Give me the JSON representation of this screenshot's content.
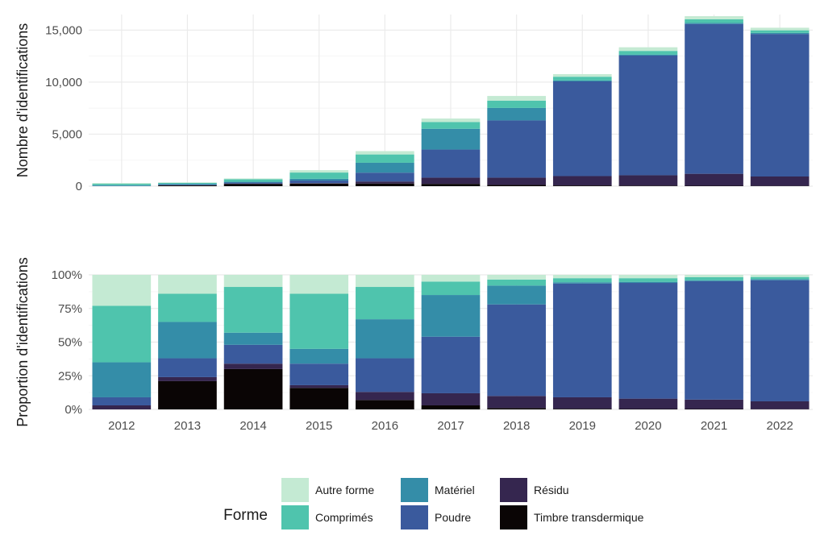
{
  "chart_data": [
    {
      "type": "bar",
      "stacked": true,
      "ylabel": "Nombre d'identifications",
      "xlabel": "",
      "ylim": [
        0,
        16500
      ],
      "yticks": [
        "0",
        "5,000",
        "10,000",
        "15,000"
      ],
      "ytick_values": [
        0,
        5000,
        10000,
        15000
      ],
      "categories": [
        "2012",
        "2013",
        "2014",
        "2015",
        "2016",
        "2017",
        "2018",
        "2019",
        "2020",
        "2021",
        "2022"
      ],
      "series": [
        {
          "name": "Timbre transdermique",
          "values": [
            0,
            80,
            220,
            250,
            250,
            220,
            120,
            70,
            50,
            40,
            30
          ]
        },
        {
          "name": "Résidu",
          "values": [
            0,
            10,
            30,
            40,
            200,
            600,
            700,
            900,
            1000,
            1150,
            900
          ]
        },
        {
          "name": "Poudre",
          "values": [
            20,
            50,
            100,
            250,
            850,
            2700,
            5500,
            9100,
            11500,
            14400,
            13700
          ]
        },
        {
          "name": "Matériel",
          "values": [
            80,
            100,
            70,
            170,
            950,
            2000,
            1200,
            100,
            100,
            100,
            100
          ]
        },
        {
          "name": "Comprimés",
          "values": [
            130,
            80,
            250,
            600,
            800,
            650,
            700,
            350,
            350,
            350,
            250
          ]
        },
        {
          "name": "Autre forme",
          "values": [
            70,
            50,
            70,
            230,
            320,
            330,
            450,
            250,
            350,
            300,
            250
          ]
        }
      ]
    },
    {
      "type": "bar",
      "stacked": true,
      "ylabel": "Proportion d'identifications",
      "xlabel": "",
      "ylim": [
        0,
        100
      ],
      "yticks": [
        "0%",
        "25%",
        "50%",
        "75%",
        "100%"
      ],
      "ytick_values": [
        0,
        25,
        50,
        75,
        100
      ],
      "categories": [
        "2012",
        "2013",
        "2014",
        "2015",
        "2016",
        "2017",
        "2018",
        "2019",
        "2020",
        "2021",
        "2022"
      ],
      "series": [
        {
          "name": "Timbre transdermique",
          "values": [
            0,
            21,
            30,
            16,
            7,
            3,
            1,
            0.5,
            0.3,
            0.3,
            0.2
          ]
        },
        {
          "name": "Résidu",
          "values": [
            3,
            3,
            4,
            2,
            6,
            9,
            9,
            8.5,
            7.7,
            7,
            5.8
          ]
        },
        {
          "name": "Poudre",
          "values": [
            6,
            14,
            14,
            16,
            25,
            42,
            68,
            84.5,
            86,
            88,
            90
          ]
        },
        {
          "name": "Matériel",
          "values": [
            26,
            27,
            9,
            11,
            29,
            31,
            14,
            1,
            0.8,
            0.7,
            0.8
          ]
        },
        {
          "name": "Comprimés",
          "values": [
            42,
            21,
            34,
            41,
            24,
            10,
            4.5,
            3,
            2.7,
            2.2,
            1.6
          ]
        },
        {
          "name": "Autre forme",
          "values": [
            23,
            14,
            9,
            14,
            9,
            5,
            3.5,
            2.5,
            2.5,
            1.8,
            1.6
          ]
        }
      ]
    }
  ],
  "legend": {
    "title": "Forme",
    "placement": "bottom",
    "items": [
      {
        "label": "Autre forme",
        "color": "#c4ead3"
      },
      {
        "label": "Comprimés",
        "color": "#4fc4ad"
      },
      {
        "label": "Matériel",
        "color": "#348da8"
      },
      {
        "label": "Poudre",
        "color": "#3a5a9d"
      },
      {
        "label": "Résidu",
        "color": "#35264f"
      },
      {
        "label": "Timbre transdermique",
        "color": "#0a0505"
      }
    ]
  },
  "colors": {
    "Autre forme": "#c4ead3",
    "Comprimés": "#4fc4ad",
    "Matériel": "#348da8",
    "Poudre": "#3a5a9d",
    "Résidu": "#35264f",
    "Timbre transdermique": "#0a0505"
  }
}
